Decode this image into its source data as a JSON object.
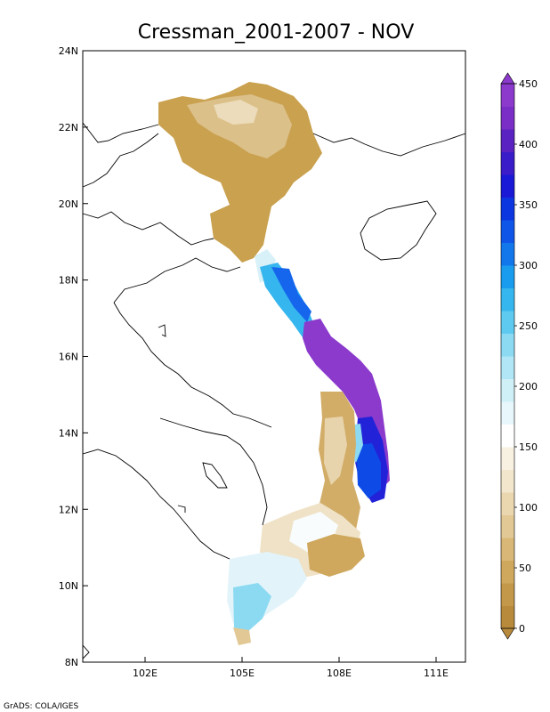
{
  "map": {
    "title": "Cressman_2001-2007 - NOV",
    "lon_ticks": [
      "102E",
      "105E",
      "108E",
      "111E"
    ],
    "lat_ticks": [
      "24N",
      "22N",
      "20N",
      "18N",
      "16N",
      "14N",
      "12N",
      "10N",
      "8N"
    ]
  },
  "colorbar": {
    "labels": [
      "450",
      "400",
      "350",
      "300",
      "250",
      "200",
      "150",
      "100",
      "50",
      "0"
    ],
    "colors": [
      "#b88a3c",
      "#c4984a",
      "#cfa85e",
      "#d9b877",
      "#e2c894",
      "#ead7b0",
      "#f2e6cc",
      "#f8f1e2",
      "#ffffff",
      "#e8f7fb",
      "#d0f0f8",
      "#b0e6f5",
      "#8cdaf2",
      "#5fcaf0",
      "#36b6ee",
      "#1a9cee",
      "#1377ec",
      "#0f55e8",
      "#0c36e0",
      "#1a1ad6",
      "#3a1cc8",
      "#5a22c0",
      "#7a2ec6",
      "#8b3acc"
    ]
  },
  "credit": "GrADS: COLA/IGES"
}
